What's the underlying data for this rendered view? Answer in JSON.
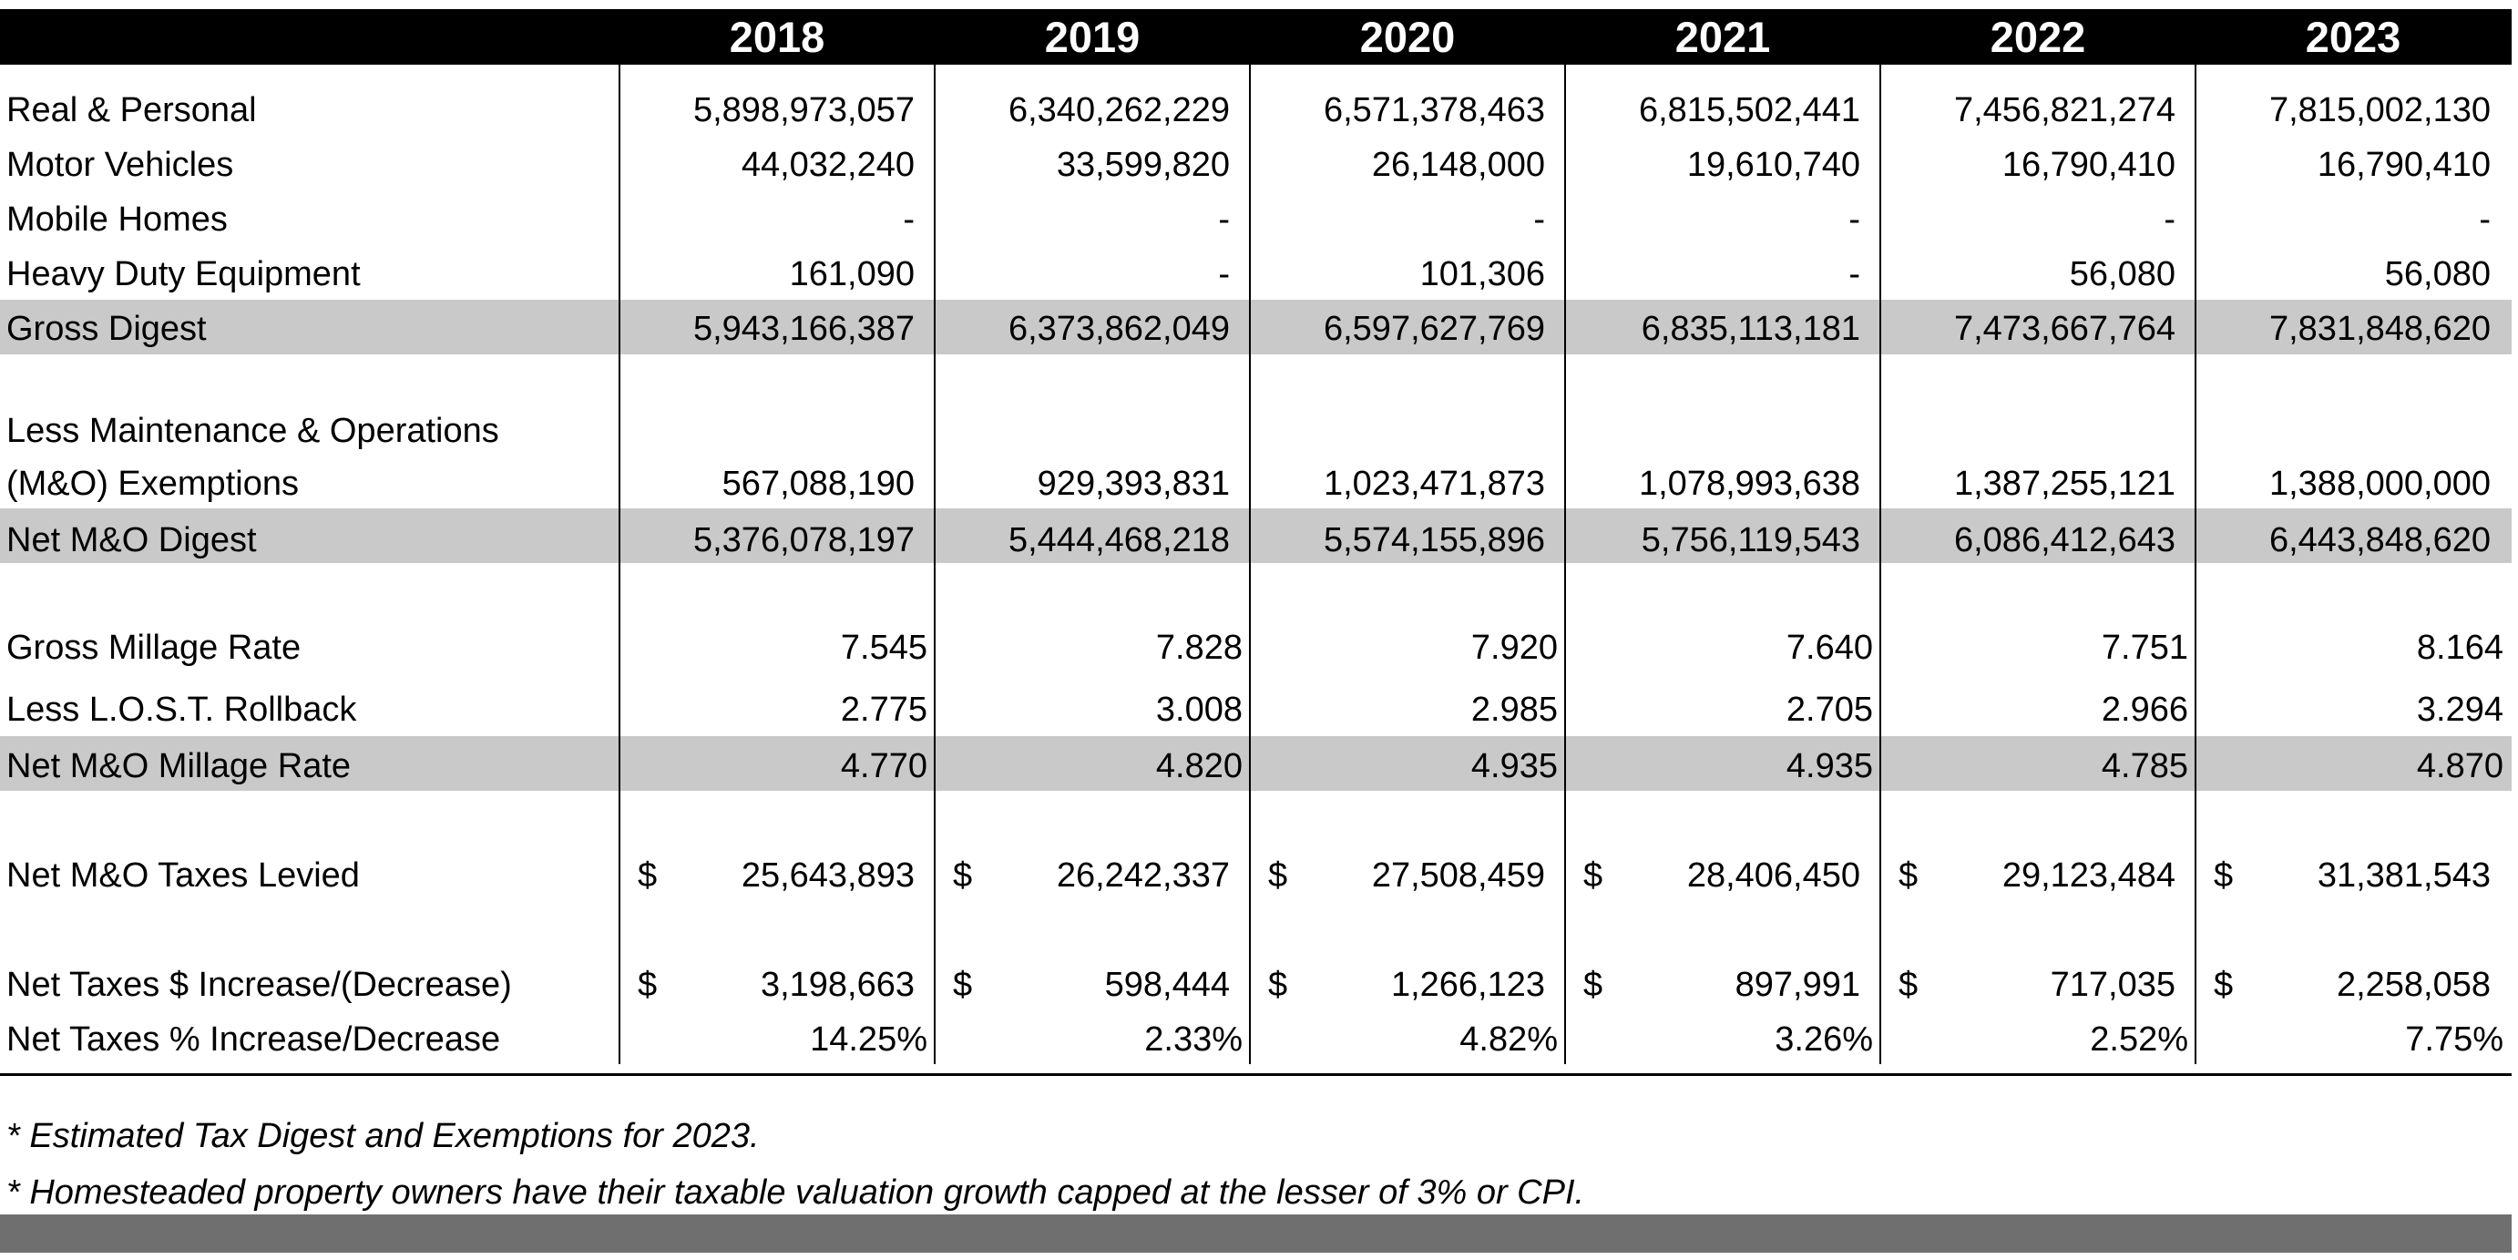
{
  "years": [
    "2018",
    "2019",
    "2020",
    "2021",
    "2022",
    "2023"
  ],
  "rows": [
    {
      "label": "Real & Personal",
      "values": [
        "5,898,973,057",
        "6,340,262,229",
        "6,571,378,463",
        "6,815,502,441",
        "7,456,821,274",
        "7,815,002,130"
      ]
    },
    {
      "label": "Motor Vehicles",
      "values": [
        "44,032,240",
        "33,599,820",
        "26,148,000",
        "19,610,740",
        "16,790,410",
        "16,790,410"
      ]
    },
    {
      "label": "Mobile Homes",
      "values": [
        "-",
        "-",
        "-",
        "-",
        "-",
        "-"
      ]
    },
    {
      "label": "Heavy Duty Equipment",
      "values": [
        "161,090",
        "-",
        "101,306",
        "-",
        "56,080",
        "56,080"
      ]
    },
    {
      "label": "Gross Digest",
      "values": [
        "5,943,166,387",
        "6,373,862,049",
        "6,597,627,769",
        "6,835,113,181",
        "7,473,667,764",
        "7,831,848,620"
      ]
    },
    {
      "label": "Less Maintenance & Operations",
      "label2": "(M&O) Exemptions",
      "values": [
        "567,088,190",
        "929,393,831",
        "1,023,471,873",
        "1,078,993,638",
        "1,387,255,121",
        "1,388,000,000"
      ]
    },
    {
      "label": "Net M&O Digest",
      "values": [
        "5,376,078,197",
        "5,444,468,218",
        "5,574,155,896",
        "5,756,119,543",
        "6,086,412,643",
        "6,443,848,620"
      ]
    },
    {
      "label": "Gross Millage Rate",
      "values": [
        "7.545",
        "7.828",
        "7.920",
        "7.640",
        "7.751",
        "8.164"
      ]
    },
    {
      "label": "Less L.O.S.T. Rollback",
      "values": [
        "2.775",
        "3.008",
        "2.985",
        "2.705",
        "2.966",
        "3.294"
      ]
    },
    {
      "label": "Net M&O Millage Rate",
      "values": [
        "4.770",
        "4.820",
        "4.935",
        "4.935",
        "4.785",
        "4.870"
      ]
    },
    {
      "label": "Net M&O Taxes Levied",
      "currency": "$",
      "values": [
        "25,643,893",
        "26,242,337",
        "27,508,459",
        "28,406,450",
        "29,123,484",
        "31,381,543"
      ]
    },
    {
      "label": "Net Taxes $ Increase/(Decrease)",
      "currency": "$",
      "values": [
        "3,198,663",
        "598,444",
        "1,266,123",
        "897,991",
        "717,035",
        "2,258,058"
      ]
    },
    {
      "label": "Net Taxes % Increase/Decrease",
      "values": [
        "14.25%",
        "2.33%",
        "4.82%",
        "3.26%",
        "2.52%",
        "7.75%"
      ]
    }
  ],
  "notes": [
    "* Estimated Tax Digest and Exemptions for 2023.",
    "* Homesteaded property owners have their taxable valuation growth capped at the lesser of 3% or CPI."
  ]
}
